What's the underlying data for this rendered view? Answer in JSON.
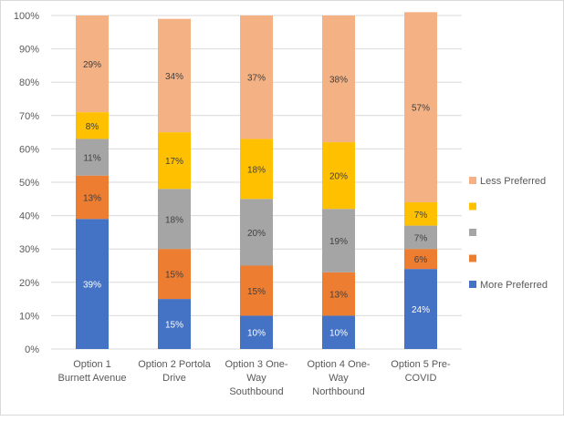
{
  "chart_data": {
    "type": "bar",
    "stacked": true,
    "percent_stacked": true,
    "title": "",
    "xlabel": "",
    "ylabel": "",
    "ylim": [
      0,
      100
    ],
    "yticks": [
      "0%",
      "10%",
      "20%",
      "30%",
      "40%",
      "50%",
      "60%",
      "70%",
      "80%",
      "90%",
      "100%"
    ],
    "grid": true,
    "legend_position": "right",
    "categories": [
      [
        "Option 1",
        "Burnett Avenue"
      ],
      [
        "Option 2 Portola",
        "Drive"
      ],
      [
        "Option 3 One-",
        "Way",
        "Southbound"
      ],
      [
        "Option 4 One-",
        "Way",
        "Northbound"
      ],
      [
        "Option 5 Pre-",
        "COVID"
      ]
    ],
    "series": [
      {
        "name": "More Preferred",
        "color": "#4472C4",
        "values": [
          39,
          15,
          10,
          10,
          24
        ]
      },
      {
        "name": "",
        "color": "#ED7D31",
        "values": [
          13,
          15,
          15,
          13,
          6
        ]
      },
      {
        "name": "",
        "color": "#A5A5A5",
        "values": [
          11,
          18,
          20,
          19,
          7
        ]
      },
      {
        "name": "",
        "color": "#FFC000",
        "values": [
          8,
          17,
          18,
          20,
          7
        ]
      },
      {
        "name": "Less Preferred",
        "color": "#F4B183",
        "values": [
          29,
          34,
          37,
          38,
          57
        ]
      }
    ],
    "data_label_suffix": "%"
  }
}
